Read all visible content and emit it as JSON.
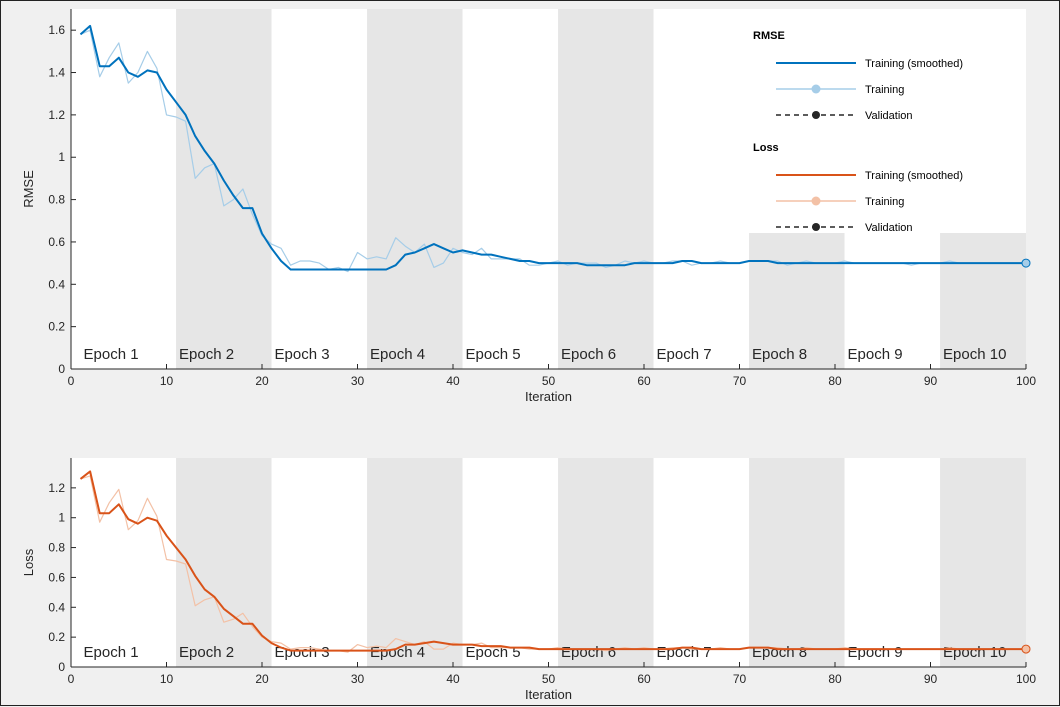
{
  "chart_data": [
    {
      "type": "line",
      "xlabel": "Iteration",
      "ylabel": "RMSE",
      "xlim": [
        0,
        100
      ],
      "ylim": [
        0,
        1.7
      ],
      "xticks": [
        "0",
        "10",
        "20",
        "30",
        "40",
        "50",
        "60",
        "70",
        "80",
        "90",
        "100"
      ],
      "yticks": [
        "0",
        "0.2",
        "0.4",
        "0.6",
        "0.8",
        "1",
        "1.2",
        "1.4",
        "1.6"
      ],
      "ytick_values": [
        0,
        0.2,
        0.4,
        0.6,
        0.8,
        1,
        1.2,
        1.4,
        1.6
      ],
      "epochs": [
        "Epoch 1",
        "Epoch 2",
        "Epoch 3",
        "Epoch 4",
        "Epoch 5",
        "Epoch 6",
        "Epoch 7",
        "Epoch 8",
        "Epoch 9",
        "Epoch 10"
      ],
      "grid": false,
      "legend_position": "top-right",
      "series": [
        {
          "name": "Training (smoothed)",
          "color": "#0072bd",
          "values": [
            1.58,
            1.62,
            1.43,
            1.43,
            1.47,
            1.4,
            1.38,
            1.41,
            1.4,
            1.32,
            1.26,
            1.2,
            1.1,
            1.03,
            0.97,
            0.89,
            0.82,
            0.76,
            0.76,
            0.64,
            0.57,
            0.51,
            0.47,
            0.47,
            0.47,
            0.47,
            0.47,
            0.47,
            0.47,
            0.47,
            0.47,
            0.47,
            0.47,
            0.49,
            0.54,
            0.55,
            0.57,
            0.59,
            0.57,
            0.55,
            0.56,
            0.55,
            0.54,
            0.54,
            0.53,
            0.52,
            0.51,
            0.51,
            0.5,
            0.5,
            0.5,
            0.5,
            0.5,
            0.49,
            0.49,
            0.49,
            0.49,
            0.49,
            0.5,
            0.5,
            0.5,
            0.5,
            0.5,
            0.51,
            0.51,
            0.5,
            0.5,
            0.5,
            0.5,
            0.5,
            0.51,
            0.51,
            0.51,
            0.5,
            0.5,
            0.5,
            0.5,
            0.5,
            0.5,
            0.5,
            0.5,
            0.5,
            0.5,
            0.5,
            0.5,
            0.5,
            0.5,
            0.5,
            0.5,
            0.5,
            0.5,
            0.5,
            0.5,
            0.5,
            0.5,
            0.5,
            0.5,
            0.5,
            0.5,
            0.5,
            0.5
          ]
        },
        {
          "name": "Training",
          "color": "#a6cde8",
          "values": [
            1.58,
            1.6,
            1.38,
            1.47,
            1.54,
            1.35,
            1.4,
            1.5,
            1.42,
            1.2,
            1.19,
            1.17,
            0.9,
            0.95,
            0.97,
            0.77,
            0.8,
            0.85,
            0.73,
            0.63,
            0.59,
            0.57,
            0.49,
            0.51,
            0.51,
            0.5,
            0.47,
            0.48,
            0.46,
            0.55,
            0.52,
            0.53,
            0.52,
            0.62,
            0.58,
            0.55,
            0.59,
            0.48,
            0.5,
            0.57,
            0.55,
            0.54,
            0.57,
            0.52,
            0.52,
            0.52,
            0.52,
            0.49,
            0.49,
            0.5,
            0.51,
            0.49,
            0.5,
            0.5,
            0.5,
            0.48,
            0.49,
            0.51,
            0.5,
            0.51,
            0.5,
            0.5,
            0.51,
            0.51,
            0.49,
            0.5,
            0.5,
            0.51,
            0.5,
            0.5,
            0.51,
            0.51,
            0.51,
            0.51,
            0.49,
            0.5,
            0.51,
            0.5,
            0.5,
            0.5,
            0.51,
            0.5,
            0.5,
            0.5,
            0.5,
            0.5,
            0.5,
            0.49,
            0.5,
            0.5,
            0.5,
            0.51,
            0.5,
            0.5,
            0.5,
            0.5,
            0.5,
            0.5,
            0.5,
            0.5,
            0.5
          ]
        }
      ],
      "final_point": {
        "x": 100,
        "y": 0.5
      }
    },
    {
      "type": "line",
      "xlabel": "Iteration",
      "ylabel": "Loss",
      "xlim": [
        0,
        100
      ],
      "ylim": [
        0,
        1.4
      ],
      "xticks": [
        "0",
        "10",
        "20",
        "30",
        "40",
        "50",
        "60",
        "70",
        "80",
        "90",
        "100"
      ],
      "yticks": [
        "0",
        "0.2",
        "0.4",
        "0.6",
        "0.8",
        "1",
        "1.2"
      ],
      "ytick_values": [
        0,
        0.2,
        0.4,
        0.6,
        0.8,
        1,
        1.2
      ],
      "epochs": [
        "Epoch 1",
        "Epoch 2",
        "Epoch 3",
        "Epoch 4",
        "Epoch 5",
        "Epoch 6",
        "Epoch 7",
        "Epoch 8",
        "Epoch 9",
        "Epoch 10"
      ],
      "grid": false,
      "series": [
        {
          "name": "Training (smoothed)",
          "color": "#d95319",
          "values": [
            1.26,
            1.31,
            1.03,
            1.03,
            1.09,
            0.99,
            0.96,
            1.0,
            0.98,
            0.88,
            0.8,
            0.72,
            0.61,
            0.52,
            0.47,
            0.39,
            0.34,
            0.29,
            0.29,
            0.21,
            0.16,
            0.13,
            0.11,
            0.11,
            0.11,
            0.11,
            0.11,
            0.11,
            0.11,
            0.11,
            0.11,
            0.11,
            0.11,
            0.12,
            0.15,
            0.15,
            0.16,
            0.17,
            0.16,
            0.15,
            0.15,
            0.15,
            0.14,
            0.14,
            0.14,
            0.13,
            0.13,
            0.13,
            0.12,
            0.12,
            0.12,
            0.12,
            0.12,
            0.12,
            0.12,
            0.12,
            0.12,
            0.12,
            0.12,
            0.12,
            0.12,
            0.12,
            0.12,
            0.13,
            0.13,
            0.12,
            0.12,
            0.12,
            0.12,
            0.12,
            0.13,
            0.13,
            0.13,
            0.12,
            0.12,
            0.12,
            0.12,
            0.12,
            0.12,
            0.12,
            0.12,
            0.12,
            0.12,
            0.12,
            0.12,
            0.12,
            0.12,
            0.12,
            0.12,
            0.12,
            0.12,
            0.12,
            0.12,
            0.12,
            0.12,
            0.12,
            0.12,
            0.12,
            0.12,
            0.12,
            0.12
          ]
        },
        {
          "name": "Training",
          "color": "#f3c1a6",
          "values": [
            1.26,
            1.28,
            0.97,
            1.1,
            1.19,
            0.92,
            0.98,
            1.13,
            1.01,
            0.72,
            0.71,
            0.69,
            0.41,
            0.45,
            0.47,
            0.3,
            0.32,
            0.36,
            0.27,
            0.2,
            0.17,
            0.16,
            0.12,
            0.13,
            0.13,
            0.12,
            0.11,
            0.11,
            0.1,
            0.15,
            0.13,
            0.14,
            0.13,
            0.19,
            0.17,
            0.15,
            0.17,
            0.12,
            0.12,
            0.16,
            0.15,
            0.15,
            0.16,
            0.13,
            0.13,
            0.13,
            0.13,
            0.12,
            0.12,
            0.12,
            0.13,
            0.12,
            0.12,
            0.12,
            0.12,
            0.11,
            0.12,
            0.13,
            0.12,
            0.13,
            0.12,
            0.12,
            0.13,
            0.13,
            0.12,
            0.12,
            0.12,
            0.13,
            0.12,
            0.12,
            0.13,
            0.13,
            0.13,
            0.13,
            0.12,
            0.12,
            0.13,
            0.12,
            0.12,
            0.12,
            0.13,
            0.12,
            0.12,
            0.12,
            0.12,
            0.12,
            0.12,
            0.12,
            0.12,
            0.12,
            0.12,
            0.13,
            0.12,
            0.12,
            0.12,
            0.12,
            0.12,
            0.12,
            0.12,
            0.12,
            0.12
          ]
        }
      ],
      "final_point": {
        "x": 100,
        "y": 0.12
      }
    }
  ],
  "legend": {
    "rmse_title": "RMSE",
    "loss_title": "Loss",
    "rmse_items": [
      {
        "label": "Training (smoothed)",
        "color": "#0072bd",
        "style": "solid"
      },
      {
        "label": "Training",
        "color": "#a6cde8",
        "style": "marker"
      },
      {
        "label": "Validation",
        "color": "#262626",
        "style": "dashed"
      }
    ],
    "loss_items": [
      {
        "label": "Training (smoothed)",
        "color": "#d95319",
        "style": "solid"
      },
      {
        "label": "Training",
        "color": "#f3c1a6",
        "style": "marker"
      },
      {
        "label": "Validation",
        "color": "#262626",
        "style": "dashed"
      }
    ]
  }
}
